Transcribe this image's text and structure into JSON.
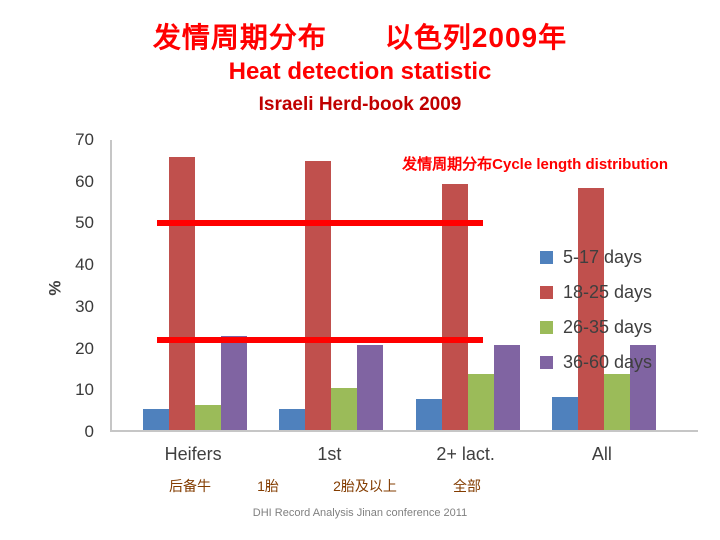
{
  "footer": "DHI Record Analysis Jinan conference 2011",
  "chart_data": {
    "type": "bar",
    "title": "发情周期分布　　以色列2009年",
    "subtitle": "Heat detection statistic",
    "subtitle2": "Israeli Herd-book 2009",
    "annotation": "发情周期分布Cycle length distribution",
    "xlabel": "",
    "ylabel": "%",
    "ylim": [
      0,
      70
    ],
    "yticks": [
      0,
      10,
      20,
      30,
      40,
      50,
      60,
      70
    ],
    "grid": false,
    "legend_position": "right",
    "categories": [
      "Heifers",
      "1st",
      "2+ lact.",
      "All"
    ],
    "categories_cn": [
      "后备牛",
      "1胎",
      "2胎及以上",
      "全部"
    ],
    "series": [
      {
        "name": "5-17 days",
        "color": "#4f81bd",
        "values": [
          5,
          5,
          7.5,
          8
        ]
      },
      {
        "name": "18-25 days",
        "color": "#c0504d",
        "values": [
          65.5,
          64.5,
          59,
          58
        ]
      },
      {
        "name": "26-35 days",
        "color": "#9bbb59",
        "values": [
          6,
          10,
          13.5,
          13.5
        ]
      },
      {
        "name": "36-60 days",
        "color": "#8064a2",
        "values": [
          22.5,
          20.5,
          20.5,
          20.5
        ]
      }
    ],
    "reference_lines": [
      50,
      22
    ]
  }
}
